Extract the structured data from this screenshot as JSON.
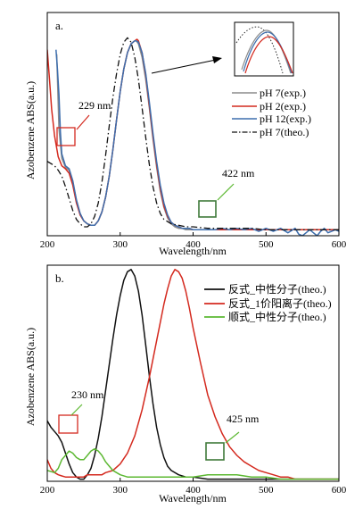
{
  "chart_data": [
    {
      "panel_label": "a.",
      "type": "line",
      "xlabel": "Wavelength/nm",
      "ylabel": "Azobenzene ABS(a.u.)",
      "xlim": [
        200,
        600
      ],
      "ylim": [
        0,
        1.5
      ],
      "x_ticks": [
        "200",
        "300",
        "400",
        "500",
        "600"
      ],
      "grid": false,
      "legend_position": "right",
      "series": [
        {
          "name": "pH 7(exp.)",
          "color": "#8c8c8c",
          "dash": "solid",
          "x": [
            213,
            216,
            220,
            225,
            230,
            235,
            240,
            245,
            250,
            255,
            260,
            265,
            270,
            275,
            280,
            285,
            290,
            295,
            300,
            305,
            310,
            315,
            320,
            322,
            325,
            330,
            335,
            340,
            345,
            350,
            355,
            360,
            365,
            370,
            375,
            380,
            385,
            390,
            395,
            400,
            410,
            420,
            430,
            440,
            460,
            480,
            500,
            520,
            540,
            560,
            580,
            600
          ],
          "y": [
            1.22,
            0.72,
            0.52,
            0.46,
            0.44,
            0.36,
            0.24,
            0.15,
            0.1,
            0.08,
            0.07,
            0.07,
            0.1,
            0.16,
            0.26,
            0.4,
            0.58,
            0.78,
            0.97,
            1.12,
            1.23,
            1.29,
            1.31,
            1.31,
            1.29,
            1.2,
            1.05,
            0.86,
            0.65,
            0.46,
            0.3,
            0.19,
            0.12,
            0.08,
            0.06,
            0.05,
            0.05,
            0.04,
            0.04,
            0.04,
            0.04,
            0.04,
            0.04,
            0.04,
            0.04,
            0.04,
            0.04,
            0.04,
            0.04,
            0.04,
            0.04,
            0.04
          ]
        },
        {
          "name": "pH 2(exp.)",
          "color": "#d42a1f",
          "dash": "solid",
          "x": [
            200,
            203,
            206,
            210,
            215,
            220,
            225,
            230,
            235,
            240,
            245,
            250,
            255,
            260,
            265,
            270,
            275,
            280,
            285,
            290,
            295,
            300,
            305,
            310,
            315,
            320,
            323,
            325,
            330,
            335,
            340,
            345,
            350,
            355,
            360,
            365,
            370,
            375,
            380,
            385,
            390,
            395,
            400,
            410,
            420,
            430,
            440,
            460,
            480,
            500,
            520,
            540,
            560,
            580,
            600
          ],
          "y": [
            1.25,
            1.05,
            0.85,
            0.67,
            0.53,
            0.47,
            0.45,
            0.42,
            0.34,
            0.22,
            0.14,
            0.1,
            0.08,
            0.07,
            0.07,
            0.1,
            0.16,
            0.26,
            0.4,
            0.58,
            0.78,
            0.97,
            1.12,
            1.23,
            1.29,
            1.31,
            1.32,
            1.31,
            1.23,
            1.08,
            0.88,
            0.67,
            0.48,
            0.32,
            0.2,
            0.13,
            0.09,
            0.07,
            0.06,
            0.05,
            0.05,
            0.05,
            0.04,
            0.04,
            0.04,
            0.04,
            0.04,
            0.04,
            0.04,
            0.04,
            0.04,
            0.04,
            0.04,
            0.04,
            0.04
          ]
        },
        {
          "name": "pH 12(exp.)",
          "color": "#3d6ead",
          "dash": "solid",
          "x": [
            212,
            214,
            216,
            218,
            220,
            225,
            230,
            235,
            240,
            245,
            250,
            255,
            260,
            265,
            270,
            275,
            280,
            285,
            290,
            295,
            300,
            305,
            310,
            315,
            320,
            322,
            325,
            330,
            335,
            340,
            345,
            350,
            355,
            360,
            365,
            370,
            375,
            380,
            385,
            390,
            395,
            400,
            410,
            420,
            430,
            440,
            450,
            460,
            470,
            480,
            490,
            500,
            510,
            520,
            530,
            540,
            545,
            550,
            555,
            560,
            565,
            570,
            575,
            580,
            585,
            590,
            595,
            600
          ],
          "y": [
            1.25,
            1.12,
            0.95,
            0.7,
            0.55,
            0.47,
            0.45,
            0.37,
            0.24,
            0.15,
            0.1,
            0.08,
            0.07,
            0.07,
            0.1,
            0.16,
            0.26,
            0.4,
            0.58,
            0.78,
            0.97,
            1.12,
            1.23,
            1.29,
            1.31,
            1.31,
            1.3,
            1.23,
            1.09,
            0.9,
            0.69,
            0.5,
            0.34,
            0.22,
            0.14,
            0.09,
            0.07,
            0.06,
            0.05,
            0.05,
            0.05,
            0.04,
            0.04,
            0.04,
            0.04,
            0.05,
            0.04,
            0.05,
            0.04,
            0.05,
            0.03,
            0.05,
            0.03,
            0.05,
            0.02,
            0.05,
            0.01,
            0.0,
            0.02,
            0.04,
            0.02,
            0.0,
            0.03,
            0.05,
            0.02,
            0.03,
            0.04,
            0.03
          ]
        },
        {
          "name": "pH 7(theo.)",
          "color": "#111111",
          "dash": "dashdot",
          "x": [
            200,
            210,
            215,
            220,
            225,
            230,
            235,
            240,
            245,
            250,
            255,
            260,
            265,
            270,
            275,
            280,
            285,
            290,
            295,
            300,
            305,
            310,
            315,
            320,
            325,
            330,
            335,
            340,
            345,
            350,
            355,
            360,
            370,
            380,
            390,
            400,
            420,
            440,
            460,
            480,
            500,
            520,
            540,
            560,
            580,
            600
          ],
          "y": [
            0.5,
            0.47,
            0.44,
            0.4,
            0.33,
            0.25,
            0.17,
            0.11,
            0.08,
            0.06,
            0.06,
            0.08,
            0.13,
            0.22,
            0.36,
            0.54,
            0.74,
            0.93,
            1.09,
            1.22,
            1.3,
            1.33,
            1.3,
            1.2,
            1.05,
            0.86,
            0.66,
            0.48,
            0.33,
            0.22,
            0.15,
            0.11,
            0.08,
            0.07,
            0.06,
            0.06,
            0.05,
            0.05,
            0.05,
            0.05,
            0.04,
            0.04,
            0.04,
            0.04,
            0.04,
            0.04
          ]
        }
      ],
      "annotations": [
        {
          "text": "229 nm",
          "x": 229,
          "y": 0.45,
          "color": "#d42a1f"
        },
        {
          "text": "422 nm",
          "x": 422,
          "y": 0.05,
          "color": "#3f7a3a"
        }
      ]
    },
    {
      "panel_label": "b.",
      "type": "line",
      "xlabel": "Wavelength/nm",
      "ylabel": "Azobenzene ABS(a.u.)",
      "xlim": [
        200,
        600
      ],
      "ylim": [
        0,
        1.0
      ],
      "x_ticks": [
        "200",
        "300",
        "400",
        "500",
        "600"
      ],
      "grid": false,
      "legend_position": "top-right",
      "series": [
        {
          "name": "反式_中性分子(theo.)",
          "color": "#111111",
          "dash": "solid",
          "x": [
            200,
            205,
            210,
            215,
            220,
            225,
            230,
            235,
            240,
            245,
            250,
            255,
            260,
            265,
            270,
            275,
            280,
            285,
            290,
            295,
            300,
            305,
            310,
            315,
            320,
            325,
            330,
            335,
            340,
            345,
            350,
            355,
            360,
            365,
            370,
            380,
            390,
            400,
            420,
            440,
            460,
            500,
            540,
            600
          ],
          "y": [
            0.28,
            0.25,
            0.23,
            0.21,
            0.18,
            0.13,
            0.08,
            0.04,
            0.02,
            0.01,
            0.01,
            0.03,
            0.06,
            0.12,
            0.2,
            0.3,
            0.42,
            0.54,
            0.66,
            0.77,
            0.86,
            0.93,
            0.97,
            0.98,
            0.95,
            0.88,
            0.77,
            0.63,
            0.49,
            0.36,
            0.25,
            0.17,
            0.11,
            0.07,
            0.05,
            0.03,
            0.02,
            0.02,
            0.01,
            0.01,
            0.01,
            0.01,
            0.01,
            0.01
          ]
        },
        {
          "name": "反式_1价阳离子(theo.)",
          "color": "#d42a1f",
          "dash": "solid",
          "x": [
            200,
            205,
            210,
            215,
            220,
            225,
            230,
            235,
            240,
            245,
            250,
            255,
            260,
            265,
            270,
            275,
            280,
            290,
            300,
            310,
            320,
            330,
            340,
            350,
            360,
            365,
            370,
            375,
            380,
            385,
            390,
            395,
            400,
            410,
            420,
            430,
            440,
            450,
            460,
            470,
            480,
            490,
            500,
            510,
            520,
            530,
            540,
            560,
            580,
            600
          ],
          "y": [
            0.1,
            0.06,
            0.04,
            0.03,
            0.025,
            0.02,
            0.02,
            0.02,
            0.02,
            0.02,
            0.02,
            0.03,
            0.03,
            0.03,
            0.03,
            0.03,
            0.04,
            0.05,
            0.08,
            0.13,
            0.21,
            0.33,
            0.48,
            0.65,
            0.82,
            0.89,
            0.95,
            0.98,
            0.97,
            0.94,
            0.88,
            0.8,
            0.71,
            0.55,
            0.4,
            0.3,
            0.22,
            0.16,
            0.12,
            0.09,
            0.07,
            0.05,
            0.04,
            0.03,
            0.02,
            0.02,
            0.01,
            0.01,
            0.01,
            0.01
          ]
        },
        {
          "name": "顺式_中性分子(theo.)",
          "color": "#5cb832",
          "dash": "solid",
          "x": [
            200,
            210,
            215,
            220,
            225,
            230,
            235,
            240,
            245,
            250,
            255,
            260,
            265,
            270,
            275,
            280,
            285,
            290,
            295,
            300,
            310,
            320,
            340,
            360,
            380,
            400,
            420,
            440,
            460,
            480,
            500,
            520,
            540,
            560,
            580,
            600
          ],
          "y": [
            0.05,
            0.04,
            0.06,
            0.1,
            0.12,
            0.14,
            0.13,
            0.11,
            0.1,
            0.1,
            0.12,
            0.14,
            0.15,
            0.14,
            0.12,
            0.09,
            0.07,
            0.05,
            0.04,
            0.03,
            0.02,
            0.02,
            0.02,
            0.02,
            0.02,
            0.02,
            0.03,
            0.03,
            0.03,
            0.02,
            0.02,
            0.01,
            0.01,
            0.01,
            0.01,
            0.01
          ]
        }
      ],
      "annotations": [
        {
          "text": "230 nm",
          "x": 230,
          "y": 0.14,
          "color": "#d42a1f"
        },
        {
          "text": "425 nm",
          "x": 425,
          "y": 0.03,
          "color": "#3f7a3a"
        }
      ]
    }
  ]
}
